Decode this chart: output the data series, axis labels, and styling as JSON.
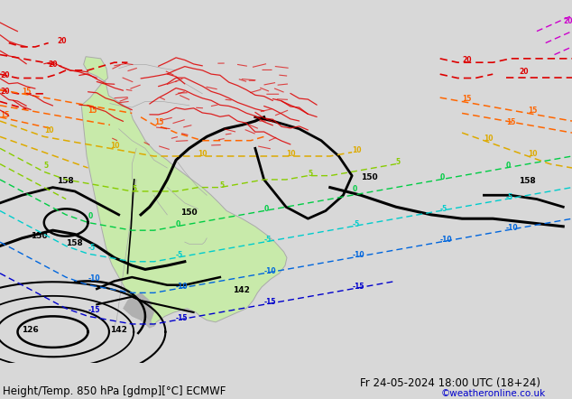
{
  "title_left": "Height/Temp. 850 hPa [gdmp][°C] ECMWF",
  "title_right": "Fr 24-05-2024 18:00 UTC (18+24)",
  "watermark": "©weatheronline.co.uk",
  "bg_color": "#d8d8d8",
  "land_color": "#c8eaaa",
  "ocean_color": "#d8d8d8",
  "border_color": "#aaaaaa",
  "bottom_text_color": "#000000",
  "watermark_color": "#0000cc",
  "font_size_title": 8.5,
  "font_size_watermark": 7.5,
  "xlim": [
    -100,
    30
  ],
  "ylim": [
    -65,
    28
  ]
}
